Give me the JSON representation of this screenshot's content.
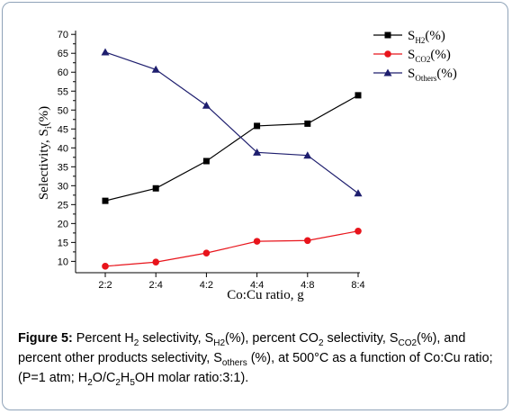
{
  "chart_data": {
    "type": "line",
    "xlabel": "Co:Cu ratio, g",
    "ylabel_main": "Selectivity, S",
    "ylabel_sub": "i",
    "ylabel_tail": "(%)",
    "categories": [
      "2:2",
      "2:4",
      "4:2",
      "4:4",
      "4:8",
      "8:4"
    ],
    "ylim": [
      7,
      71
    ],
    "yticks": [
      10,
      15,
      20,
      25,
      30,
      35,
      40,
      45,
      50,
      55,
      60,
      65,
      70
    ],
    "grid": false,
    "legend_position": "top-right",
    "series": [
      {
        "key": "h2",
        "legend_main": "S",
        "legend_sub": "H2",
        "legend_tail": "(%)",
        "color": "#000000",
        "marker": "square",
        "values": [
          26.0,
          29.3,
          36.5,
          45.8,
          46.4,
          53.9
        ]
      },
      {
        "key": "co2",
        "legend_main": "S",
        "legend_sub": "CO2",
        "legend_tail": "(%)",
        "color": "#e8141b",
        "marker": "circle",
        "values": [
          8.7,
          9.8,
          12.2,
          15.3,
          15.5,
          18.0
        ]
      },
      {
        "key": "others",
        "legend_main": "S",
        "legend_sub": "Others",
        "legend_tail": "(%)",
        "color": "#1e1e6e",
        "marker": "triangle",
        "values": [
          65.3,
          60.7,
          51.2,
          38.8,
          38.0,
          28.0
        ]
      }
    ]
  },
  "caption": {
    "label": "Figure 5:",
    "t1": " Percent H",
    "s1": "2",
    "t2": " selectivity, S",
    "s2": "H2",
    "t3": "(%), percent CO",
    "s3": "2",
    "t4": " selectivity, S",
    "s4": "CO2",
    "t5": "(%), and percent other products selectivity, S",
    "s5": "others",
    "t6": " (%), at 500°C as a function of Co:Cu ratio; (P=1 atm; H",
    "s6": "2",
    "t7": "O/C",
    "s7": "2",
    "t8": "H",
    "s8": "5",
    "t9": "OH molar ratio:3:1)."
  }
}
